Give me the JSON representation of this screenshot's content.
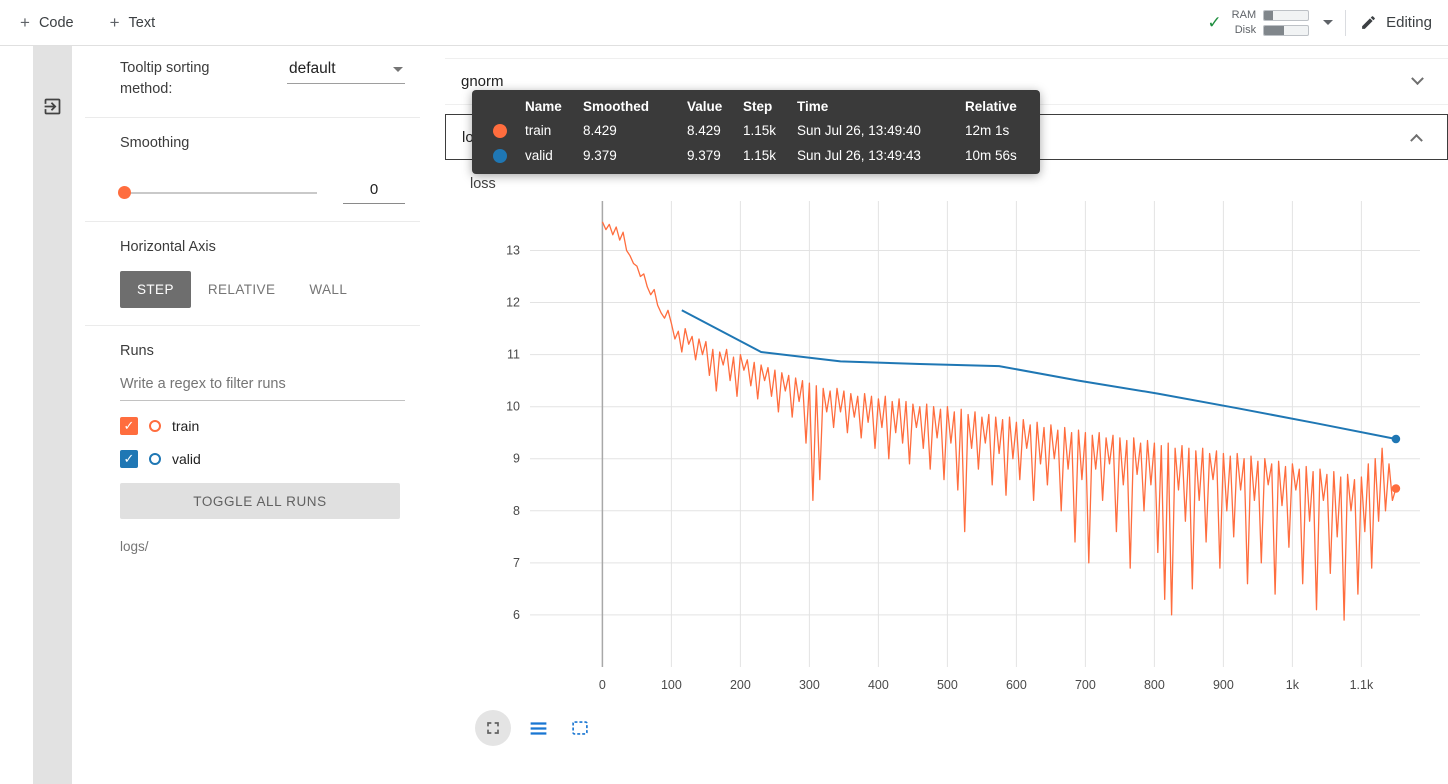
{
  "colab_bar": {
    "plus": "+",
    "add_code": "Code",
    "add_text": "Text",
    "ram_label": "RAM",
    "disk_label": "Disk",
    "ram_pct": 20,
    "disk_pct": 45,
    "editing_label": "Editing"
  },
  "sidebar": {
    "tooltip_sorting_label": "Tooltip sorting method:",
    "tooltip_sorting_value": "default",
    "smoothing_label": "Smoothing",
    "smoothing_value": "0",
    "horizontal_axis_label": "Horizontal Axis",
    "axis_modes": [
      "STEP",
      "RELATIVE",
      "WALL"
    ],
    "axis_active": 0,
    "runs_label": "Runs",
    "runs_filter_placeholder": "Write a regex to filter runs",
    "runs": [
      {
        "name": "train",
        "color": "#ff6d3e",
        "checked": true
      },
      {
        "name": "valid",
        "color": "#1f77b4",
        "checked": true
      }
    ],
    "toggle_all_label": "TOGGLE ALL RUNS",
    "logs_label": "logs/"
  },
  "main": {
    "gnorm_title": "gnorm",
    "loss_title": "loss",
    "chart_title": "loss"
  },
  "tooltip": {
    "headers": [
      "Name",
      "Smoothed",
      "Value",
      "Step",
      "Time",
      "Relative"
    ],
    "rows": [
      {
        "color": "#ff6d3e",
        "name": "train",
        "smoothed": "8.429",
        "value": "8.429",
        "step": "1.15k",
        "time": "Sun Jul 26, 13:49:40",
        "relative": "12m 1s"
      },
      {
        "color": "#1f77b4",
        "name": "valid",
        "smoothed": "9.379",
        "value": "9.379",
        "step": "1.15k",
        "time": "Sun Jul 26, 13:49:43",
        "relative": "10m 56s"
      }
    ]
  },
  "chart_data": {
    "type": "line",
    "title": "loss",
    "grid": true,
    "x_range": [
      -105,
      1185
    ],
    "y_range": [
      5.0,
      13.95
    ],
    "x_ticks": [
      {
        "v": 0,
        "label": "0"
      },
      {
        "v": 100,
        "label": "100"
      },
      {
        "v": 200,
        "label": "200"
      },
      {
        "v": 300,
        "label": "300"
      },
      {
        "v": 400,
        "label": "400"
      },
      {
        "v": 500,
        "label": "500"
      },
      {
        "v": 600,
        "label": "600"
      },
      {
        "v": 700,
        "label": "700"
      },
      {
        "v": 800,
        "label": "800"
      },
      {
        "v": 900,
        "label": "900"
      },
      {
        "v": 1000,
        "label": "1k"
      },
      {
        "v": 1100,
        "label": "1.1k"
      }
    ],
    "y_ticks": [
      6,
      7,
      8,
      9,
      10,
      11,
      12,
      13
    ],
    "series": [
      {
        "name": "train",
        "color": "#ff6d3e",
        "x_start": 0,
        "x_step": 5,
        "y": [
          13.55,
          13.4,
          13.5,
          13.3,
          13.45,
          13.2,
          13.35,
          13.0,
          12.9,
          12.75,
          12.7,
          12.5,
          12.55,
          12.3,
          12.15,
          12.25,
          11.95,
          11.8,
          11.7,
          11.85,
          11.6,
          11.3,
          11.45,
          11.05,
          11.5,
          11.2,
          11.35,
          10.9,
          11.3,
          11.0,
          11.25,
          10.6,
          11.1,
          10.3,
          11.05,
          10.8,
          11.1,
          10.5,
          10.95,
          10.2,
          11.0,
          10.7,
          10.9,
          10.4,
          10.85,
          10.15,
          10.8,
          10.5,
          10.75,
          10.2,
          10.7,
          9.9,
          10.65,
          10.3,
          10.6,
          9.8,
          10.55,
          10.1,
          10.5,
          9.3,
          10.45,
          8.2,
          10.4,
          8.6,
          10.35,
          9.9,
          10.3,
          9.6,
          10.35,
          9.9,
          10.3,
          9.5,
          10.25,
          9.8,
          10.2,
          9.4,
          10.25,
          9.7,
          10.2,
          9.2,
          10.15,
          9.6,
          10.2,
          9.0,
          10.1,
          9.5,
          10.15,
          9.3,
          10.1,
          8.9,
          10.05,
          9.6,
          10.0,
          9.2,
          10.05,
          8.8,
          10.0,
          9.4,
          9.95,
          8.6,
          10.0,
          9.3,
          9.9,
          8.4,
          9.95,
          7.6,
          9.85,
          9.2,
          9.9,
          8.8,
          9.8,
          9.3,
          9.85,
          8.5,
          9.8,
          9.1,
          9.75,
          8.3,
          9.8,
          9.0,
          9.7,
          8.6,
          9.75,
          9.2,
          9.65,
          8.2,
          9.7,
          8.9,
          9.6,
          8.5,
          9.65,
          9.0,
          9.55,
          8.0,
          9.6,
          8.8,
          9.5,
          7.4,
          9.55,
          8.6,
          9.5,
          7.0,
          9.45,
          8.8,
          9.5,
          8.2,
          9.4,
          8.9,
          9.45,
          7.6,
          9.4,
          8.5,
          9.35,
          6.9,
          9.4,
          8.7,
          9.3,
          8.0,
          9.35,
          8.5,
          9.3,
          7.2,
          9.25,
          6.3,
          9.3,
          6.0,
          9.2,
          8.4,
          9.25,
          7.8,
          9.2,
          6.5,
          9.15,
          8.2,
          9.2,
          7.4,
          9.1,
          8.6,
          9.15,
          6.9,
          9.1,
          8.0,
          9.05,
          7.5,
          9.1,
          8.4,
          9.0,
          6.6,
          9.05,
          8.2,
          8.95,
          7.0,
          9.0,
          8.5,
          8.9,
          6.4,
          8.95,
          8.1,
          8.85,
          7.3,
          8.9,
          8.4,
          8.8,
          6.6,
          8.85,
          7.8,
          8.75,
          6.1,
          8.8,
          8.2,
          8.7,
          6.8,
          8.75,
          7.5,
          8.65,
          5.9,
          8.7,
          8.0,
          8.6,
          6.4,
          8.65,
          7.6,
          8.9,
          6.9,
          9.0,
          7.8,
          9.2,
          8.0,
          8.9,
          8.2,
          8.429
        ]
      },
      {
        "name": "valid",
        "color": "#1f77b4",
        "points": [
          [
            115,
            11.85
          ],
          [
            230,
            11.05
          ],
          [
            345,
            10.87
          ],
          [
            460,
            10.82
          ],
          [
            575,
            10.78
          ],
          [
            690,
            10.5
          ],
          [
            805,
            10.25
          ],
          [
            920,
            9.97
          ],
          [
            1035,
            9.68
          ],
          [
            1150,
            9.379
          ]
        ]
      }
    ]
  }
}
